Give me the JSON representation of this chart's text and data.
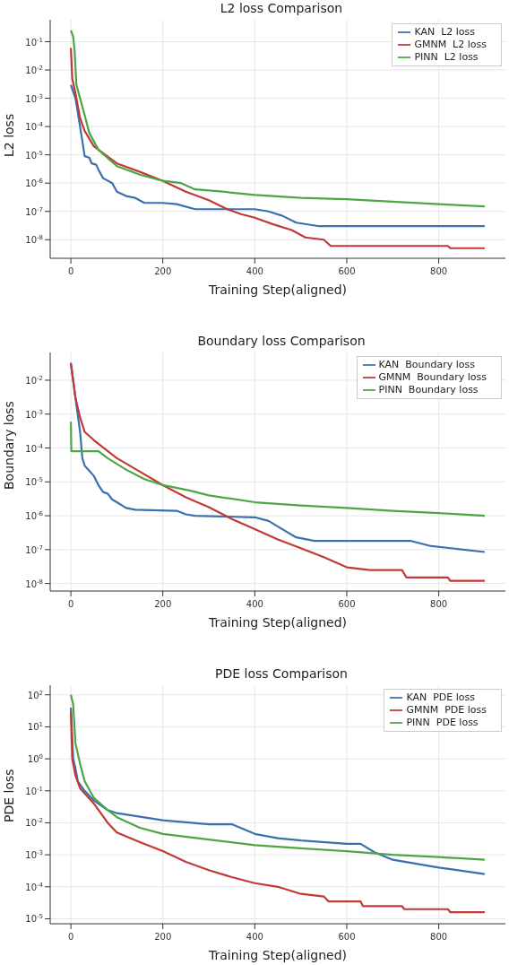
{
  "chart_data": [
    {
      "type": "line",
      "title": "L2 loss Comparison",
      "xlabel": "Training Step(aligned)",
      "ylabel": "L2 loss",
      "log": "y",
      "grid": true,
      "legend": "top right",
      "marker": "none",
      "line_style": "solid",
      "xlim": [
        -45,
        945
      ],
      "xticks": [
        0,
        200,
        400,
        600,
        800
      ],
      "ylim": [
        2.2e-09,
        0.6
      ],
      "yticks": [
        {
          "value": 0.1,
          "label": "10$^{-1}$"
        },
        {
          "value": 0.01,
          "label": "10$^{-2}$"
        },
        {
          "value": 0.001,
          "label": "10$^{-3}$"
        },
        {
          "value": 0.0001,
          "label": "10$^{-4}$"
        },
        {
          "value": 1e-05,
          "label": "10$^{-5}$"
        },
        {
          "value": 1e-06,
          "label": "10$^{-6}$"
        },
        {
          "value": 1e-07,
          "label": "10$^{-7}$"
        },
        {
          "value": 1e-08,
          "label": "10$^{-8}$"
        }
      ],
      "series": [
        {
          "name": "KAN  L2 loss",
          "color": "#3b70b0",
          "x": [
            0,
            10,
            20,
            25,
            30,
            40,
            45,
            55,
            60,
            70,
            90,
            100,
            120,
            140,
            160,
            200,
            230,
            270,
            400,
            430,
            460,
            490,
            540,
            900
          ],
          "values": [
            0.003,
            0.001,
            0.0001,
            3e-05,
            9e-06,
            8e-06,
            5e-06,
            4.5e-06,
            3e-06,
            1.5e-06,
            1e-06,
            5e-07,
            3.5e-07,
            3e-07,
            2e-07,
            2e-07,
            1.8e-07,
            1.2e-07,
            1.2e-07,
            1e-07,
            7e-08,
            4e-08,
            3e-08,
            3e-08
          ]
        },
        {
          "name": "GMNM  L2 loss",
          "color": "#c03a35",
          "x": [
            0,
            3,
            10,
            20,
            30,
            50,
            100,
            150,
            200,
            250,
            300,
            340,
            370,
            400,
            440,
            480,
            510,
            550,
            565,
            820,
            825,
            900
          ],
          "values": [
            0.06,
            0.005,
            0.0015,
            0.0002,
            7e-05,
            2e-05,
            5e-06,
            2.5e-06,
            1.2e-06,
            5e-07,
            2.5e-07,
            1.2e-07,
            8e-08,
            6e-08,
            3.5e-08,
            2.2e-08,
            1.2e-08,
            1e-08,
            6e-09,
            6e-09,
            5e-09,
            5e-09
          ]
        },
        {
          "name": "PINN  L2 loss",
          "color": "#4ea545",
          "x": [
            0,
            5,
            8,
            12,
            20,
            30,
            40,
            60,
            100,
            150,
            200,
            240,
            270,
            330,
            400,
            500,
            600,
            700,
            800,
            900
          ],
          "values": [
            0.25,
            0.15,
            0.05,
            0.003,
            0.001,
            0.00025,
            6e-05,
            1.5e-05,
            4e-06,
            2e-06,
            1.2e-06,
            1e-06,
            6e-07,
            5e-07,
            3.8e-07,
            3e-07,
            2.7e-07,
            2.2e-07,
            1.8e-07,
            1.5e-07
          ]
        }
      ]
    },
    {
      "type": "line",
      "title": "Boundary loss Comparison",
      "xlabel": "Training Step(aligned)",
      "ylabel": "Boundary loss",
      "log": "y",
      "grid": true,
      "legend": "top right",
      "marker": "none",
      "line_style": "solid",
      "xlim": [
        -45,
        945
      ],
      "xticks": [
        0,
        200,
        400,
        600,
        800
      ],
      "ylim": [
        6e-09,
        0.066
      ],
      "yticks": [
        {
          "value": 0.01,
          "label": "10$^{-2}$"
        },
        {
          "value": 0.001,
          "label": "10$^{-3}$"
        },
        {
          "value": 0.0001,
          "label": "10$^{-4}$"
        },
        {
          "value": 1e-05,
          "label": "10$^{-5}$"
        },
        {
          "value": 1e-06,
          "label": "10$^{-6}$"
        },
        {
          "value": 1e-07,
          "label": "10$^{-7}$"
        },
        {
          "value": 1e-08,
          "label": "10$^{-8}$"
        }
      ],
      "series": [
        {
          "name": "KAN  Boundary loss",
          "color": "#3b70b0",
          "x": [
            0,
            10,
            20,
            25,
            30,
            50,
            60,
            70,
            80,
            90,
            100,
            120,
            140,
            230,
            250,
            270,
            400,
            430,
            460,
            490,
            530,
            740,
            780,
            900
          ],
          "values": [
            0.033,
            0.003,
            0.0003,
            5e-05,
            3e-05,
            1.5e-05,
            8e-06,
            5e-06,
            4.5e-06,
            3e-06,
            2.5e-06,
            1.7e-06,
            1.5e-06,
            1.4e-06,
            1.1e-06,
            1e-06,
            9e-07,
            7e-07,
            4e-07,
            2.3e-07,
            1.8e-07,
            1.8e-07,
            1.3e-07,
            8.5e-08
          ]
        },
        {
          "name": "GMNM  Boundary loss",
          "color": "#c03a35",
          "x": [
            0,
            10,
            20,
            30,
            50,
            100,
            150,
            200,
            250,
            300,
            350,
            400,
            450,
            500,
            550,
            600,
            650,
            720,
            730,
            820,
            825,
            900
          ],
          "values": [
            0.03,
            0.003,
            0.0008,
            0.0003,
            0.00017,
            5e-05,
            2e-05,
            8e-06,
            3.5e-06,
            1.8e-06,
            8e-07,
            4e-07,
            2e-07,
            1.1e-07,
            6e-08,
            3e-08,
            2.5e-08,
            2.5e-08,
            1.5e-08,
            1.5e-08,
            1.2e-08,
            1.2e-08
          ]
        },
        {
          "name": "PINN  Boundary loss",
          "color": "#4ea545",
          "x": [
            0,
            1,
            60,
            80,
            120,
            160,
            200,
            260,
            300,
            400,
            500,
            600,
            700,
            800,
            900
          ],
          "values": [
            0.0006,
            8e-05,
            8e-05,
            5e-05,
            2.3e-05,
            1.2e-05,
            8e-06,
            5.5e-06,
            4e-06,
            2.5e-06,
            2e-06,
            1.7e-06,
            1.4e-06,
            1.2e-06,
            1e-06
          ]
        }
      ]
    },
    {
      "type": "line",
      "title": "PDE loss Comparison",
      "xlabel": "Training Step(aligned)",
      "ylabel": "PDE loss",
      "log": "y",
      "grid": true,
      "legend": "top right",
      "marker": "none",
      "line_style": "solid",
      "xlim": [
        -45,
        945
      ],
      "xticks": [
        0,
        200,
        400,
        600,
        800
      ],
      "ylim": [
        7e-06,
        200
      ],
      "yticks": [
        {
          "value": 100,
          "label": "10$^{2}$"
        },
        {
          "value": 10,
          "label": "10$^{1}$"
        },
        {
          "value": 1,
          "label": "10$^{0}$"
        },
        {
          "value": 0.1,
          "label": "10$^{-1}$"
        },
        {
          "value": 0.01,
          "label": "10$^{-2}$"
        },
        {
          "value": 0.001,
          "label": "10$^{-3}$"
        },
        {
          "value": 0.0001,
          "label": "10$^{-4}$"
        },
        {
          "value": 1e-05,
          "label": "10$^{-5}$"
        }
      ],
      "series": [
        {
          "name": "KAN  PDE loss",
          "color": "#3b70b0",
          "x": [
            0,
            5,
            10,
            15,
            30,
            50,
            80,
            100,
            200,
            300,
            350,
            400,
            450,
            500,
            600,
            630,
            660,
            700,
            800,
            900
          ],
          "values": [
            40,
            1,
            0.5,
            0.2,
            0.1,
            0.05,
            0.025,
            0.02,
            0.012,
            0.009,
            0.009,
            0.0045,
            0.0033,
            0.0028,
            0.0022,
            0.0022,
            0.0012,
            0.0007,
            0.0004,
            0.00025
          ]
        },
        {
          "name": "GMNM  PDE loss",
          "color": "#c03a35",
          "x": [
            0,
            3,
            10,
            20,
            50,
            80,
            100,
            150,
            200,
            250,
            300,
            350,
            400,
            450,
            500,
            550,
            560,
            630,
            635,
            720,
            725,
            820,
            825,
            900
          ],
          "values": [
            30,
            1,
            0.3,
            0.12,
            0.04,
            0.01,
            0.005,
            0.0025,
            0.0013,
            0.0006,
            0.00033,
            0.0002,
            0.00013,
            0.0001,
            6e-05,
            5e-05,
            3.5e-05,
            3.5e-05,
            2.5e-05,
            2.5e-05,
            2e-05,
            2e-05,
            1.6e-05,
            1.6e-05
          ]
        },
        {
          "name": "PINN  PDE loss",
          "color": "#4ea545",
          "x": [
            0,
            5,
            10,
            20,
            30,
            50,
            80,
            100,
            150,
            200,
            300,
            400,
            500,
            600,
            700,
            800,
            900
          ],
          "values": [
            100,
            50,
            3,
            0.7,
            0.2,
            0.06,
            0.025,
            0.015,
            0.007,
            0.0045,
            0.003,
            0.002,
            0.0016,
            0.0013,
            0.001,
            0.00085,
            0.0007
          ]
        }
      ]
    }
  ]
}
